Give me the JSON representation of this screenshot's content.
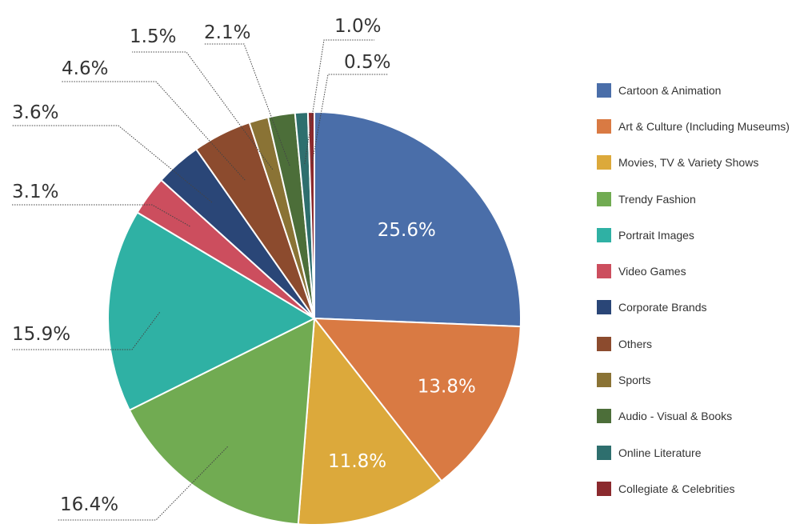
{
  "chart_data": {
    "type": "pie",
    "slices": [
      {
        "label": "Cartoon & Animation",
        "value": 25.6,
        "value_label": "25.6%",
        "color": "#4a6ea9"
      },
      {
        "label": "Art & Culture (Including Museums)",
        "value": 13.8,
        "value_label": "13.8%",
        "color": "#d97a43"
      },
      {
        "label": "Movies, TV & Variety Shows",
        "value": 11.8,
        "value_label": "11.8%",
        "color": "#dca93b"
      },
      {
        "label": "Trendy Fashion",
        "value": 16.4,
        "value_label": "16.4%",
        "color": "#71ab52"
      },
      {
        "label": "Portrait Images",
        "value": 15.9,
        "value_label": "15.9%",
        "color": "#2fb1a4"
      },
      {
        "label": "Video Games",
        "value": 3.1,
        "value_label": "3.1%",
        "color": "#cc4e5e"
      },
      {
        "label": "Corporate Brands",
        "value": 3.6,
        "value_label": "3.6%",
        "color": "#2a4677"
      },
      {
        "label": "Others",
        "value": 4.6,
        "value_label": "4.6%",
        "color": "#8c4b2e"
      },
      {
        "label": "Sports",
        "value": 1.5,
        "value_label": "1.5%",
        "color": "#8a7335"
      },
      {
        "label": "Audio - Visual & Books",
        "value": 2.1,
        "value_label": "2.1%",
        "color": "#4c6e39"
      },
      {
        "label": "Online Literature",
        "value": 1.0,
        "value_label": "1.0%",
        "color": "#2e6f6e"
      },
      {
        "label": "Collegiate & Celebrities",
        "value": 0.5,
        "value_label": "0.5%",
        "color": "#8b2a2e"
      }
    ],
    "legend_position": "right"
  }
}
